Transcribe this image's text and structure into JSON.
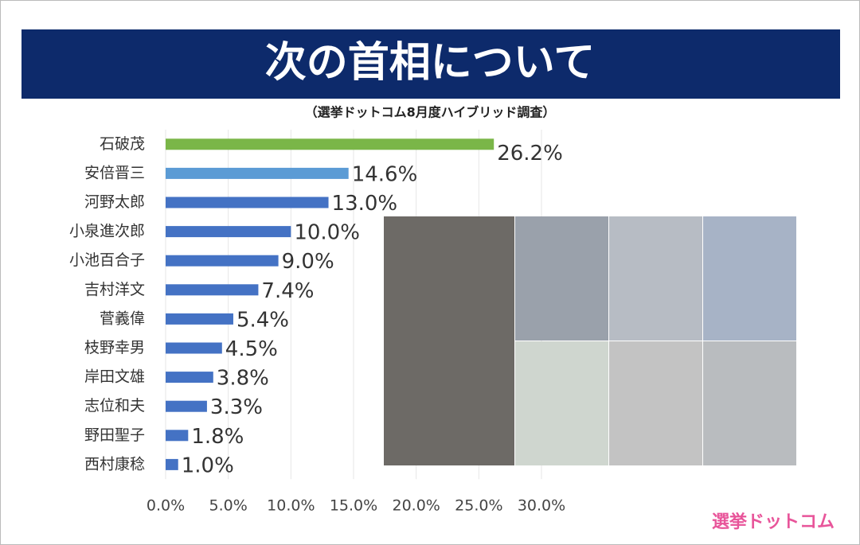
{
  "chart_data": {
    "type": "hbar",
    "title": "次の首相について",
    "subtitle": "（選挙ドットコム8月度ハイブリッド調査）",
    "logo": "選挙ドットコム",
    "categories": [
      "石破茂",
      "安倍晋三",
      "河野太郎",
      "小泉進次郎",
      "小池百合子",
      "吉村洋文",
      "菅義偉",
      "枝野幸男",
      "岸田文雄",
      "志位和夫",
      "野田聖子",
      "西村康稔"
    ],
    "values": [
      26.2,
      14.6,
      13.0,
      10.0,
      9.0,
      7.4,
      5.4,
      4.5,
      3.8,
      3.3,
      1.8,
      1.0
    ],
    "value_labels": [
      "26.2%",
      "14.6%",
      "13.0%",
      "10.0%",
      "9.0%",
      "7.4%",
      "5.4%",
      "4.5%",
      "3.8%",
      "3.3%",
      "1.8%",
      "1.0%"
    ],
    "colors": [
      "#7ab648",
      "#5b9bd5",
      "#4472c4",
      "#4472c4",
      "#4472c4",
      "#4472c4",
      "#4472c4",
      "#4472c4",
      "#4472c4",
      "#4472c4",
      "#4472c4",
      "#4472c4"
    ],
    "xlim": [
      0,
      30
    ],
    "xticks": [
      {
        "value": 0,
        "label": "0.0%"
      },
      {
        "value": 5,
        "label": "5.0%"
      },
      {
        "value": 10,
        "label": "10.0%"
      },
      {
        "value": 15,
        "label": "15.0%"
      },
      {
        "value": 20,
        "label": "20.0%"
      },
      {
        "value": 25,
        "label": "25.0%"
      },
      {
        "value": 30,
        "label": "30.0%"
      }
    ],
    "grid": true
  }
}
